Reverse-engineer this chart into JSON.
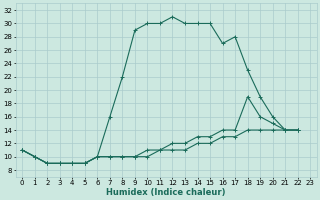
{
  "xlabel": "Humidex (Indice chaleur)",
  "ylabel": "",
  "bg_color": "#cce8e0",
  "grid_color": "#aacccc",
  "line_color": "#1a6b5a",
  "xlim": [
    -0.5,
    23.5
  ],
  "ylim": [
    7,
    33
  ],
  "xticks": [
    0,
    1,
    2,
    3,
    4,
    5,
    6,
    7,
    8,
    9,
    10,
    11,
    12,
    13,
    14,
    15,
    16,
    17,
    18,
    19,
    20,
    21,
    22,
    23
  ],
  "yticks": [
    8,
    10,
    12,
    14,
    16,
    18,
    20,
    22,
    24,
    26,
    28,
    30,
    32
  ],
  "line1_x": [
    0,
    1,
    2,
    3,
    4,
    5,
    6,
    7,
    8,
    9,
    10,
    11,
    12,
    13,
    14,
    15,
    16,
    17,
    18,
    19,
    20,
    21,
    22
  ],
  "line1_y": [
    11,
    10,
    9,
    9,
    9,
    9,
    10,
    16,
    22,
    29,
    30,
    30,
    31,
    30,
    30,
    30,
    27,
    28,
    23,
    19,
    16,
    14,
    14
  ],
  "line2_x": [
    0,
    1,
    2,
    3,
    4,
    5,
    6,
    7,
    8,
    9,
    10,
    11,
    12,
    13,
    14,
    15,
    16,
    17,
    18,
    19,
    20,
    21,
    22
  ],
  "line2_y": [
    11,
    10,
    9,
    9,
    9,
    9,
    10,
    10,
    10,
    10,
    11,
    11,
    12,
    12,
    13,
    13,
    14,
    14,
    19,
    16,
    15,
    14,
    14
  ],
  "line3_x": [
    0,
    1,
    2,
    3,
    4,
    5,
    6,
    7,
    8,
    9,
    10,
    11,
    12,
    13,
    14,
    15,
    16,
    17,
    18,
    19,
    20,
    21,
    22
  ],
  "line3_y": [
    11,
    10,
    9,
    9,
    9,
    9,
    10,
    10,
    10,
    10,
    10,
    11,
    11,
    11,
    12,
    12,
    13,
    13,
    14,
    14,
    14,
    14,
    14
  ]
}
